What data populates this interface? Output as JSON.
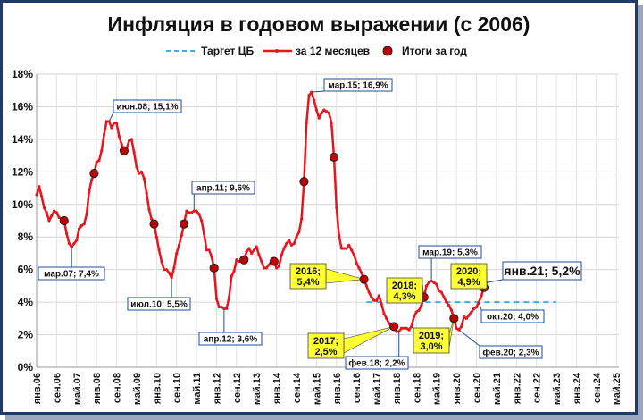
{
  "chart_data": {
    "type": "line",
    "title": "Инфляция в годовом выражении (с 2006)",
    "legend": {
      "placement": "top",
      "target_label": "Таргет ЦБ",
      "monthly_label": "за 12 месяцев",
      "annual_label": "Итоги за год"
    },
    "y_axis": {
      "min": 0,
      "max": 18,
      "ticks": [
        "0%",
        "2%",
        "4%",
        "6%",
        "8%",
        "10%",
        "12%",
        "14%",
        "16%",
        "18%"
      ],
      "tick_values": [
        0,
        2,
        4,
        6,
        8,
        10,
        12,
        14,
        16,
        18
      ]
    },
    "x_axis": {
      "tick_labels": [
        "янв.06",
        "сен.06",
        "май.07",
        "янв.08",
        "сен.08",
        "май.09",
        "янв.10",
        "сен.10",
        "май.11",
        "янв.12",
        "сен.12",
        "май.13",
        "янв.14",
        "сен.14",
        "май.15",
        "янв.16",
        "сен.16",
        "май.17",
        "янв.18",
        "сен.18",
        "май.19",
        "янв.20",
        "сен.20",
        "май.21",
        "янв.22",
        "сен.22",
        "май.23",
        "янв.24",
        "сен.24",
        "май.25"
      ],
      "tick_index": [
        0,
        8,
        16,
        24,
        32,
        40,
        48,
        56,
        64,
        72,
        80,
        88,
        96,
        104,
        112,
        120,
        128,
        136,
        144,
        152,
        160,
        168,
        176,
        184,
        192,
        200,
        208,
        216,
        224,
        232
      ],
      "grid": true
    },
    "target": {
      "value": 4,
      "from": "янв.17",
      "to": "май.23",
      "from_index": 132,
      "to_index": 208
    },
    "monthly_series": {
      "name": "за 12 месяцев",
      "color": "#e8141e",
      "points": [
        [
          0,
          10.6
        ],
        [
          1,
          11.1
        ],
        [
          2,
          10.5
        ],
        [
          3,
          9.8
        ],
        [
          4,
          9.5
        ],
        [
          5,
          9.0
        ],
        [
          6,
          9.3
        ],
        [
          7,
          9.6
        ],
        [
          8,
          9.5
        ],
        [
          9,
          9.2
        ],
        [
          10,
          9.1
        ],
        [
          11,
          9.0
        ],
        [
          12,
          8.2
        ],
        [
          13,
          7.6
        ],
        [
          14,
          7.4
        ],
        [
          15,
          7.6
        ],
        [
          16,
          7.8
        ],
        [
          17,
          8.5
        ],
        [
          18,
          8.7
        ],
        [
          19,
          8.8
        ],
        [
          20,
          9.4
        ],
        [
          21,
          10.8
        ],
        [
          22,
          11.5
        ],
        [
          23,
          11.9
        ],
        [
          24,
          12.6
        ],
        [
          25,
          12.7
        ],
        [
          26,
          13.3
        ],
        [
          27,
          14.3
        ],
        [
          28,
          15.1
        ],
        [
          29,
          15.1
        ],
        [
          30,
          14.7
        ],
        [
          31,
          15.0
        ],
        [
          32,
          15.0
        ],
        [
          33,
          14.2
        ],
        [
          34,
          13.7
        ],
        [
          35,
          13.3
        ],
        [
          36,
          13.4
        ],
        [
          37,
          13.9
        ],
        [
          38,
          14.0
        ],
        [
          39,
          13.2
        ],
        [
          40,
          12.3
        ],
        [
          41,
          11.9
        ],
        [
          42,
          12.0
        ],
        [
          43,
          11.6
        ],
        [
          44,
          10.7
        ],
        [
          45,
          9.7
        ],
        [
          46,
          9.1
        ],
        [
          47,
          8.8
        ],
        [
          48,
          8.0
        ],
        [
          49,
          7.2
        ],
        [
          50,
          6.5
        ],
        [
          51,
          6.0
        ],
        [
          52,
          6.0
        ],
        [
          53,
          5.8
        ],
        [
          54,
          5.5
        ],
        [
          55,
          6.1
        ],
        [
          56,
          7.0
        ],
        [
          57,
          7.5
        ],
        [
          58,
          8.1
        ],
        [
          59,
          8.8
        ],
        [
          60,
          9.6
        ],
        [
          61,
          9.5
        ],
        [
          62,
          9.5
        ],
        [
          63,
          9.6
        ],
        [
          64,
          9.6
        ],
        [
          65,
          9.4
        ],
        [
          66,
          9.0
        ],
        [
          67,
          8.2
        ],
        [
          68,
          7.2
        ],
        [
          69,
          7.2
        ],
        [
          70,
          6.8
        ],
        [
          71,
          6.1
        ],
        [
          72,
          4.2
        ],
        [
          73,
          3.7
        ],
        [
          74,
          3.7
        ],
        [
          75,
          3.6
        ],
        [
          76,
          3.6
        ],
        [
          77,
          4.3
        ],
        [
          78,
          5.6
        ],
        [
          79,
          5.9
        ],
        [
          80,
          6.6
        ],
        [
          81,
          6.5
        ],
        [
          82,
          6.5
        ],
        [
          83,
          6.6
        ],
        [
          84,
          7.1
        ],
        [
          85,
          7.3
        ],
        [
          86,
          7.0
        ],
        [
          87,
          7.2
        ],
        [
          88,
          7.4
        ],
        [
          89,
          6.9
        ],
        [
          90,
          6.5
        ],
        [
          91,
          6.1
        ],
        [
          92,
          6.1
        ],
        [
          93,
          6.3
        ],
        [
          94,
          6.5
        ],
        [
          95,
          6.5
        ],
        [
          96,
          6.1
        ],
        [
          97,
          6.2
        ],
        [
          98,
          6.9
        ],
        [
          99,
          7.3
        ],
        [
          100,
          7.6
        ],
        [
          101,
          7.8
        ],
        [
          102,
          7.5
        ],
        [
          103,
          7.6
        ],
        [
          104,
          8.0
        ],
        [
          105,
          8.3
        ],
        [
          106,
          9.1
        ],
        [
          107,
          11.4
        ],
        [
          108,
          15.0
        ],
        [
          109,
          16.7
        ],
        [
          110,
          16.9
        ],
        [
          111,
          16.4
        ],
        [
          112,
          15.8
        ],
        [
          113,
          15.3
        ],
        [
          114,
          15.6
        ],
        [
          115,
          15.8
        ],
        [
          116,
          15.7
        ],
        [
          117,
          15.6
        ],
        [
          118,
          15.0
        ],
        [
          119,
          12.9
        ],
        [
          120,
          9.8
        ],
        [
          121,
          8.1
        ],
        [
          122,
          7.3
        ],
        [
          123,
          7.3
        ],
        [
          124,
          7.3
        ],
        [
          125,
          7.5
        ],
        [
          126,
          7.2
        ],
        [
          127,
          6.9
        ],
        [
          128,
          6.4
        ],
        [
          129,
          6.1
        ],
        [
          130,
          5.8
        ],
        [
          131,
          5.4
        ],
        [
          132,
          5.0
        ],
        [
          133,
          4.6
        ],
        [
          134,
          4.3
        ],
        [
          135,
          4.1
        ],
        [
          136,
          4.1
        ],
        [
          137,
          4.4
        ],
        [
          138,
          3.9
        ],
        [
          139,
          3.3
        ],
        [
          140,
          3.0
        ],
        [
          141,
          2.7
        ],
        [
          142,
          2.5
        ],
        [
          143,
          2.5
        ],
        [
          144,
          2.2
        ],
        [
          145,
          2.2
        ],
        [
          146,
          2.4
        ],
        [
          147,
          2.4
        ],
        [
          148,
          2.4
        ],
        [
          149,
          2.3
        ],
        [
          150,
          2.5
        ],
        [
          151,
          3.1
        ],
        [
          152,
          3.4
        ],
        [
          153,
          3.5
        ],
        [
          154,
          3.8
        ],
        [
          155,
          4.3
        ],
        [
          156,
          5.0
        ],
        [
          157,
          5.2
        ],
        [
          158,
          5.3
        ],
        [
          159,
          5.2
        ],
        [
          160,
          5.1
        ],
        [
          161,
          4.7
        ],
        [
          162,
          4.6
        ],
        [
          163,
          4.3
        ],
        [
          164,
          4.0
        ],
        [
          165,
          3.8
        ],
        [
          166,
          3.5
        ],
        [
          167,
          3.0
        ],
        [
          168,
          2.4
        ],
        [
          169,
          2.3
        ],
        [
          170,
          2.5
        ],
        [
          171,
          3.1
        ],
        [
          172,
          3.0
        ],
        [
          173,
          3.2
        ],
        [
          174,
          3.4
        ],
        [
          175,
          3.6
        ],
        [
          176,
          3.7
        ],
        [
          177,
          4.0
        ],
        [
          178,
          4.4
        ],
        [
          179,
          4.9
        ],
        [
          180,
          5.2
        ]
      ]
    },
    "annual_series": {
      "name": "Итоги за год",
      "color": "#c00000",
      "points": [
        [
          11,
          9.0
        ],
        [
          23,
          11.9
        ],
        [
          35,
          13.3
        ],
        [
          47,
          8.8
        ],
        [
          59,
          8.8
        ],
        [
          71,
          6.1
        ],
        [
          83,
          6.6
        ],
        [
          95,
          6.5
        ],
        [
          107,
          11.4
        ],
        [
          119,
          12.9
        ],
        [
          131,
          5.4
        ],
        [
          143,
          2.5
        ],
        [
          155,
          4.3
        ],
        [
          167,
          3.0
        ],
        [
          179,
          4.9
        ]
      ]
    },
    "annotations": [
      {
        "text": "мар.07; 7,4%",
        "index": 14,
        "value": 7.4,
        "style": "white"
      },
      {
        "text": "июн.08; 15,1%",
        "index": 29,
        "value": 15.1,
        "style": "white"
      },
      {
        "text": "июл.10; 5,5%",
        "index": 54,
        "value": 5.5,
        "style": "white"
      },
      {
        "text": "апр.11; 9,6%",
        "index": 63,
        "value": 9.6,
        "style": "white"
      },
      {
        "text": "апр.12; 3,6%",
        "index": 75,
        "value": 3.6,
        "style": "white"
      },
      {
        "text": "мар.15; 16,9%",
        "index": 110,
        "value": 16.9,
        "style": "white"
      },
      {
        "text": "фев.18; 2,2%",
        "index": 145,
        "value": 2.2,
        "style": "white"
      },
      {
        "text": "мар.19; 5,3%",
        "index": 158,
        "value": 5.3,
        "style": "white"
      },
      {
        "text": "фев.20; 2,3%",
        "index": 169,
        "value": 2.3,
        "style": "white"
      },
      {
        "text": "окт.20; 4,0%",
        "index": 177,
        "value": 4.0,
        "style": "white"
      },
      {
        "text": "янв.21; 5,2%",
        "index": 180,
        "value": 5.2,
        "style": "big"
      },
      {
        "lines": [
          "2016;",
          "5,4%"
        ],
        "index": 131,
        "value": 5.4,
        "style": "yellow"
      },
      {
        "lines": [
          "2017;",
          "2,5%"
        ],
        "index": 143,
        "value": 2.5,
        "style": "yellow"
      },
      {
        "lines": [
          "2018;",
          "4,3%"
        ],
        "index": 155,
        "value": 4.3,
        "style": "yellow"
      },
      {
        "lines": [
          "2019;",
          "3,0%"
        ],
        "index": 167,
        "value": 3.0,
        "style": "yellow"
      },
      {
        "lines": [
          "2020;",
          "4,9%"
        ],
        "index": 179,
        "value": 4.9,
        "style": "yellow"
      }
    ]
  }
}
